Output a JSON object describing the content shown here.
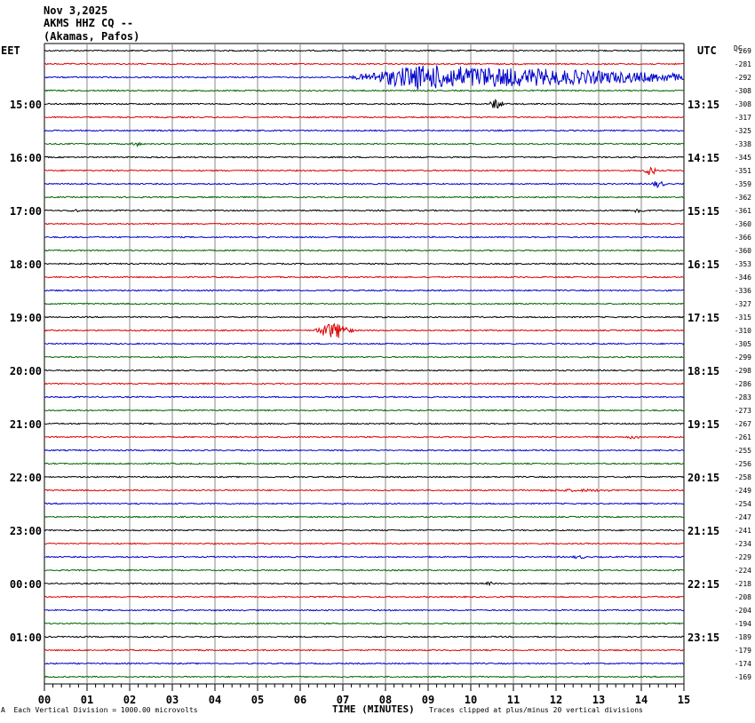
{
  "header": {
    "date": "Nov 3,2025",
    "station": "AKMS HHZ CQ --",
    "location": "(Akamas, Pafos)"
  },
  "left_timezone": "EET",
  "right_timezone": "UTC",
  "dc_label": "DC",
  "xlabel": "TIME (MINUTES)",
  "footer_scale": "Each Vertical Division = 1000.00 microvolts",
  "clip_note": "Traces clipped at plus/minus 20 vertical divisions",
  "footer_mark": "A",
  "colors": {
    "trace_cycle": [
      "#000000",
      "#dd0000",
      "#0000cc",
      "#006600"
    ],
    "grid": "#888888"
  },
  "chart_data": {
    "type": "line",
    "title": "AKMS HHZ CQ -- (Akamas, Pafos) Nov 3,2025",
    "xlabel": "TIME (MINUTES)",
    "x_range": [
      0,
      15
    ],
    "x_ticks": [
      "00",
      "01",
      "02",
      "03",
      "04",
      "05",
      "06",
      "07",
      "08",
      "09",
      "10",
      "11",
      "12",
      "13",
      "14",
      "15"
    ],
    "left_hour_labels": [
      {
        "row": 4,
        "text": "15:00"
      },
      {
        "row": 8,
        "text": "16:00"
      },
      {
        "row": 12,
        "text": "17:00"
      },
      {
        "row": 16,
        "text": "18:00"
      },
      {
        "row": 20,
        "text": "19:00"
      },
      {
        "row": 24,
        "text": "20:00"
      },
      {
        "row": 28,
        "text": "21:00"
      },
      {
        "row": 32,
        "text": "22:00"
      },
      {
        "row": 36,
        "text": "23:00"
      },
      {
        "row": 40,
        "text": "00:00"
      },
      {
        "row": 44,
        "text": "01:00"
      }
    ],
    "right_hour_labels": [
      {
        "row": 4,
        "text": "13:15"
      },
      {
        "row": 8,
        "text": "14:15"
      },
      {
        "row": 12,
        "text": "15:15"
      },
      {
        "row": 16,
        "text": "16:15"
      },
      {
        "row": 20,
        "text": "17:15"
      },
      {
        "row": 24,
        "text": "18:15"
      },
      {
        "row": 28,
        "text": "19:15"
      },
      {
        "row": 32,
        "text": "20:15"
      },
      {
        "row": 36,
        "text": "21:15"
      },
      {
        "row": 40,
        "text": "22:15"
      },
      {
        "row": 44,
        "text": "23:15"
      }
    ],
    "dc_offsets": [
      "-269",
      "-281",
      "-292",
      "-308",
      "-308",
      "-317",
      "-325",
      "-338",
      "-345",
      "-351",
      "-359",
      "-362",
      "-361",
      "-360",
      "-366",
      "-360",
      "-353",
      "-346",
      "-336",
      "-327",
      "-315",
      "-310",
      "-305",
      "-299",
      "-298",
      "-286",
      "-283",
      "-273",
      "-267",
      "-261",
      "-255",
      "-256",
      "-258",
      "-249",
      "-254",
      "-247",
      "-241",
      "-234",
      "-229",
      "-224",
      "-218",
      "-208",
      "-204",
      "-194",
      "-189",
      "-179",
      "-174",
      "-169"
    ],
    "events": [
      {
        "row": 2,
        "start_min": 7.0,
        "end_min": 15.0,
        "amplitude": 14,
        "note": "large teleseismic wavetrain"
      },
      {
        "row": 4,
        "start_min": 10.4,
        "end_min": 10.8,
        "amplitude": 6
      },
      {
        "row": 7,
        "start_min": 2.0,
        "end_min": 2.3,
        "amplitude": 3
      },
      {
        "row": 9,
        "start_min": 14.0,
        "end_min": 14.4,
        "amplitude": 5
      },
      {
        "row": 10,
        "start_min": 14.2,
        "end_min": 14.6,
        "amplitude": 4
      },
      {
        "row": 12,
        "start_min": 0.5,
        "end_min": 0.9,
        "amplitude": 2
      },
      {
        "row": 12,
        "start_min": 13.8,
        "end_min": 14.1,
        "amplitude": 4
      },
      {
        "row": 21,
        "start_min": 6.3,
        "end_min": 7.3,
        "amplitude": 9
      },
      {
        "row": 29,
        "start_min": 13.5,
        "end_min": 14.1,
        "amplitude": 2
      },
      {
        "row": 33,
        "start_min": 11.0,
        "end_min": 14.0,
        "amplitude": 1.5
      },
      {
        "row": 38,
        "start_min": 12.3,
        "end_min": 12.8,
        "amplitude": 2
      },
      {
        "row": 40,
        "start_min": 10.3,
        "end_min": 10.6,
        "amplitude": 2
      }
    ]
  }
}
